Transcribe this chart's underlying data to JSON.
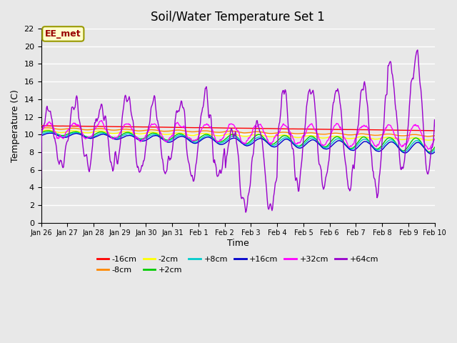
{
  "title": "Soil/Water Temperature Set 1",
  "xlabel": "Time",
  "ylabel": "Temperature (C)",
  "ylim": [
    0,
    22
  ],
  "yticks": [
    0,
    2,
    4,
    6,
    8,
    10,
    12,
    14,
    16,
    18,
    20,
    22
  ],
  "xtick_labels": [
    "Jan 26",
    "Jan 27",
    "Jan 28",
    "Jan 29",
    "Jan 30",
    "Jan 31",
    "Feb 1",
    "Feb 2",
    "Feb 3",
    "Feb 4",
    "Feb 5",
    "Feb 6",
    "Feb 7",
    "Feb 8",
    "Feb 9",
    "Feb 10"
  ],
  "background_color": "#e8e8e8",
  "plot_bg_color": "#e8e8e8",
  "grid_color": "#ffffff",
  "annotation_text": "EE_met",
  "annotation_bg": "#ffffcc",
  "annotation_border": "#999900",
  "annotation_text_color": "#990000",
  "series": [
    {
      "label": "-16cm",
      "color": "#ff0000"
    },
    {
      "label": "-8cm",
      "color": "#ff8800"
    },
    {
      "label": "-2cm",
      "color": "#ffff00"
    },
    {
      "label": "+2cm",
      "color": "#00cc00"
    },
    {
      "label": "+8cm",
      "color": "#00cccc"
    },
    {
      "label": "+16cm",
      "color": "#0000cc"
    },
    {
      "label": "+32cm",
      "color": "#ff00ff"
    },
    {
      "label": "+64cm",
      "color": "#9900cc"
    }
  ]
}
